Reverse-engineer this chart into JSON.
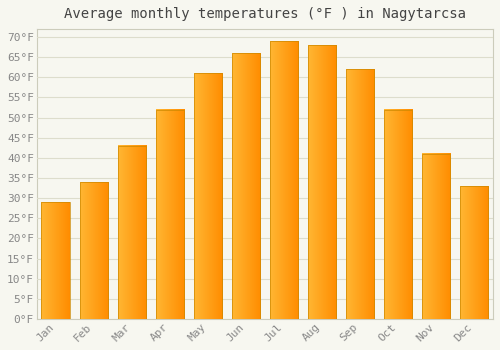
{
  "months": [
    "Jan",
    "Feb",
    "Mar",
    "Apr",
    "May",
    "Jun",
    "Jul",
    "Aug",
    "Sep",
    "Oct",
    "Nov",
    "Dec"
  ],
  "values": [
    29,
    34,
    43,
    52,
    61,
    66,
    69,
    68,
    62,
    52,
    41,
    33
  ],
  "bar_color_left": "#FFB733",
  "bar_color_right": "#FF8C00",
  "bar_edge_color": "#CC8800",
  "title": "Average monthly temperatures (°F ) in Nagytarcsa",
  "ylim": [
    0,
    72
  ],
  "yticks": [
    0,
    5,
    10,
    15,
    20,
    25,
    30,
    35,
    40,
    45,
    50,
    55,
    60,
    65,
    70
  ],
  "title_fontsize": 10,
  "tick_fontsize": 8,
  "background_color": "#f7f7f0",
  "plot_bg_color": "#f7f7f0",
  "grid_color": "#ddddcc",
  "border_color": "#ccccbb"
}
